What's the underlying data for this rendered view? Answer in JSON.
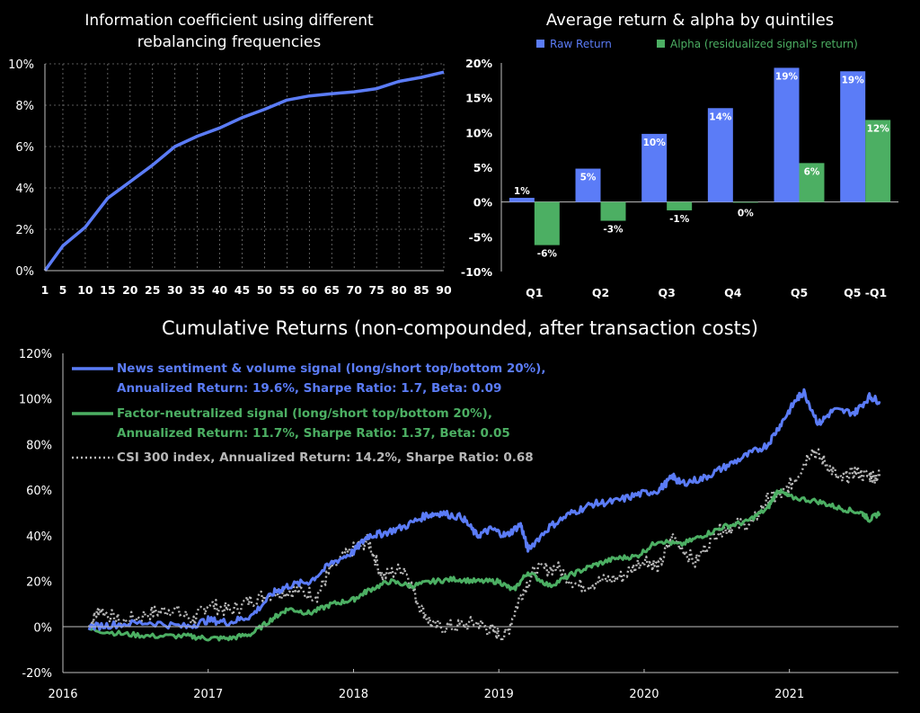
{
  "colors": {
    "blue": "#5B7CF7",
    "green": "#4CAF63",
    "gray": "#B8B8B8",
    "background": "#000000"
  },
  "chart_data": [
    {
      "type": "line",
      "title": "Information coefficient using different rebalancing frequencies",
      "title_lines": [
        "Information coefficient using different",
        "rebalancing frequencies"
      ],
      "x_ticks": [
        "1",
        "5",
        "10",
        "15",
        "20",
        "25",
        "30",
        "35",
        "40",
        "45",
        "50",
        "55",
        "60",
        "65",
        "70",
        "75",
        "80",
        "85",
        "90"
      ],
      "y_ticks": [
        "0%",
        "2%",
        "4%",
        "6%",
        "8%",
        "10%"
      ],
      "xlim": [
        1,
        90
      ],
      "ylim": [
        0,
        10
      ],
      "grid": true,
      "series": [
        {
          "color": "#5B7CF7",
          "x": [
            1,
            5,
            10,
            15,
            20,
            25,
            30,
            35,
            40,
            45,
            50,
            55,
            60,
            65,
            70,
            75,
            80,
            85,
            90
          ],
          "y": [
            0.0,
            1.2,
            2.1,
            3.5,
            4.3,
            5.1,
            6.0,
            6.5,
            6.9,
            7.4,
            7.8,
            8.25,
            8.45,
            8.55,
            8.65,
            8.8,
            9.15,
            9.35,
            9.6
          ]
        }
      ]
    },
    {
      "type": "bar",
      "title": "Average return & alpha by quintiles",
      "categories": [
        "Q1",
        "Q2",
        "Q3",
        "Q4",
        "Q5",
        "Q5 -Q1"
      ],
      "y_ticks": [
        "20%",
        "15%",
        "10%",
        "5%",
        "0%",
        "-5%",
        "-10%"
      ],
      "ylim": [
        -10,
        20
      ],
      "legend_position": "top",
      "series": [
        {
          "name": "Raw Return",
          "color": "#5B7CF7",
          "values": [
            0.6,
            4.8,
            9.8,
            13.5,
            19.3,
            18.8
          ],
          "labels": [
            "1%",
            "5%",
            "10%",
            "14%",
            "19%",
            "19%"
          ]
        },
        {
          "name": "Alpha (residualized signal's return)",
          "color": "#4CAF63",
          "values": [
            -6.2,
            -2.7,
            -1.2,
            -0.1,
            5.6,
            11.8
          ],
          "labels": [
            "-6%",
            "-3%",
            "-1%",
            "0%",
            "6%",
            "12%"
          ]
        }
      ]
    },
    {
      "type": "line",
      "title": "Cumulative Returns (non-compounded, after transaction costs)",
      "x_ticks": [
        "2016",
        "2017",
        "2018",
        "2019",
        "2020",
        "2021"
      ],
      "y_ticks": [
        "120%",
        "100%",
        "80%",
        "60%",
        "40%",
        "20%",
        "0%",
        "-20%"
      ],
      "xlim": [
        2016,
        2021.75
      ],
      "ylim": [
        -20,
        120
      ],
      "legend_position": "top-left",
      "series": [
        {
          "name": "News sentiment & volume signal (long/short top/bottom 20%),",
          "name2": "Annualized Return: 19.6%, Sharpe Ratio: 1.7, Beta: 0.09",
          "color": "#5B7CF7",
          "x": [
            2016.18,
            2016.35,
            2016.6,
            2016.85,
            2017.0,
            2017.15,
            2017.3,
            2017.45,
            2017.55,
            2017.7,
            2017.85,
            2018.0,
            2018.1,
            2018.2,
            2018.35,
            2018.5,
            2018.6,
            2018.75,
            2018.85,
            2018.95,
            2019.05,
            2019.15,
            2019.2,
            2019.35,
            2019.5,
            2019.65,
            2019.8,
            2019.95,
            2020.1,
            2020.2,
            2020.25,
            2020.4,
            2020.55,
            2020.7,
            2020.85,
            2020.95,
            2021.05,
            2021.1,
            2021.2,
            2021.3,
            2021.45,
            2021.55,
            2021.62
          ],
          "y": [
            0,
            1,
            2,
            0,
            3,
            2,
            5,
            15,
            18,
            20,
            28,
            33,
            40,
            41,
            44,
            49,
            50,
            48,
            40,
            43,
            40,
            45,
            34,
            44,
            50,
            54,
            55,
            58,
            60,
            66,
            63,
            65,
            70,
            75,
            80,
            90,
            100,
            103,
            89,
            95,
            94,
            101,
            99
          ]
        },
        {
          "name": "Factor-neutralized signal (long/short top/bottom 20%),",
          "name2": "Annualized Return: 11.7%, Sharpe Ratio: 1.37, Beta: 0.05",
          "color": "#4CAF63",
          "x": [
            2016.18,
            2016.4,
            2016.6,
            2016.85,
            2017.0,
            2017.15,
            2017.3,
            2017.45,
            2017.55,
            2017.7,
            2017.85,
            2018.0,
            2018.1,
            2018.25,
            2018.4,
            2018.55,
            2018.7,
            2018.85,
            2019.0,
            2019.1,
            2019.2,
            2019.35,
            2019.5,
            2019.65,
            2019.8,
            2019.95,
            2020.1,
            2020.25,
            2020.4,
            2020.55,
            2020.7,
            2020.85,
            2020.92,
            2021.0,
            2021.2,
            2021.35,
            2021.5,
            2021.55,
            2021.62
          ],
          "y": [
            -1,
            -3,
            -4,
            -4,
            -5,
            -5,
            -3,
            4,
            8,
            6,
            10,
            12,
            16,
            20,
            18,
            20,
            21,
            20,
            20,
            16,
            24,
            18,
            23,
            27,
            30,
            31,
            38,
            36,
            40,
            44,
            46,
            52,
            60,
            57,
            55,
            52,
            50,
            47,
            50
          ]
        },
        {
          "name": "CSI 300 index, Annualized Return: 14.2%, Sharpe Ratio: 0.68",
          "color": "#B8B8B8",
          "x": [
            2016.18,
            2016.25,
            2016.4,
            2016.6,
            2016.75,
            2016.9,
            2017.0,
            2017.15,
            2017.3,
            2017.45,
            2017.6,
            2017.75,
            2017.85,
            2018.0,
            2018.1,
            2018.2,
            2018.35,
            2018.45,
            2018.55,
            2018.7,
            2018.85,
            2018.95,
            2019.05,
            2019.15,
            2019.25,
            2019.4,
            2019.55,
            2019.7,
            2019.85,
            2020.0,
            2020.1,
            2020.2,
            2020.35,
            2020.5,
            2020.6,
            2020.75,
            2020.85,
            2020.95,
            2021.05,
            2021.15,
            2021.25,
            2021.35,
            2021.45,
            2021.55,
            2021.62
          ],
          "y": [
            0,
            8,
            2,
            6,
            8,
            3,
            10,
            7,
            12,
            15,
            16,
            14,
            26,
            34,
            38,
            22,
            26,
            10,
            0,
            0,
            2,
            -2,
            -4,
            14,
            25,
            26,
            18,
            20,
            22,
            30,
            26,
            40,
            28,
            42,
            44,
            46,
            56,
            58,
            66,
            78,
            72,
            64,
            68,
            66,
            66
          ]
        }
      ]
    }
  ]
}
